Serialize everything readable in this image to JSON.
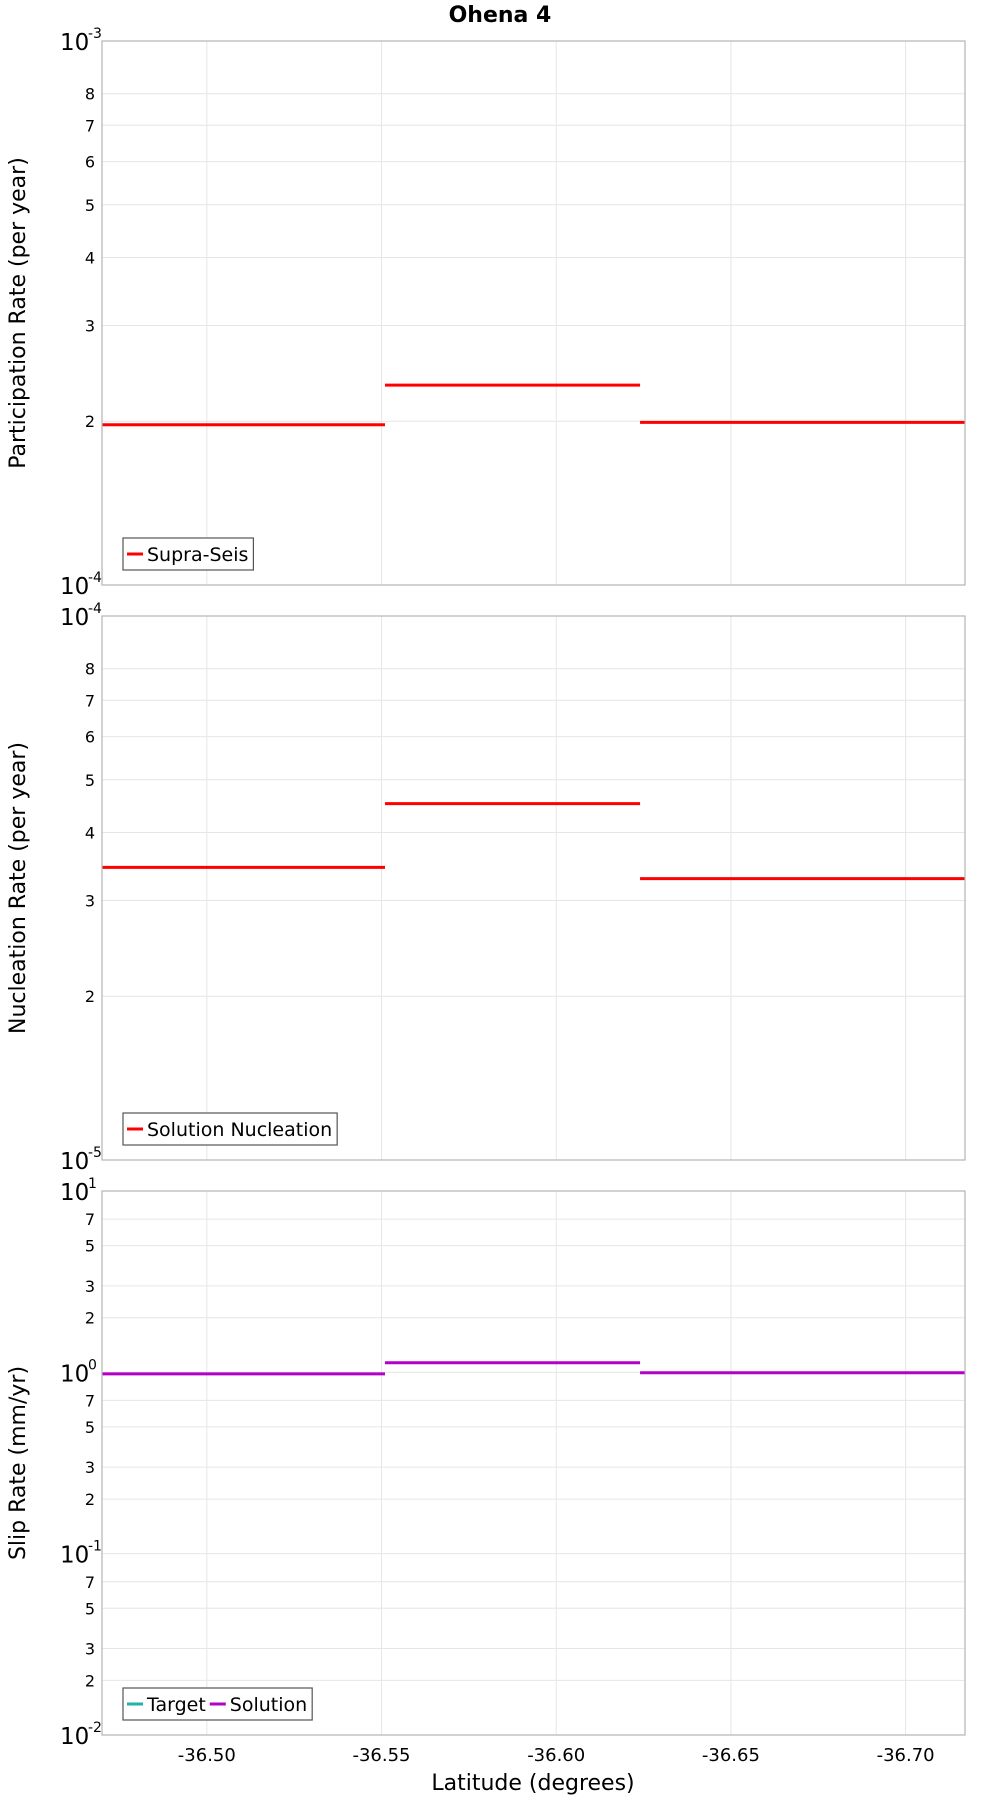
{
  "title": "Ohena 4",
  "xlabel": "Latitude (degrees)",
  "x_ticks": [
    "-36.50",
    "-36.55",
    "-36.60",
    "-36.65",
    "-36.70"
  ],
  "x_tick_values": [
    -36.5,
    -36.55,
    -36.6,
    -36.65,
    -36.7
  ],
  "xlim": [
    -36.47,
    -36.717
  ],
  "colors": {
    "red": "#ff0000",
    "teal": "#20b2aa",
    "magenta": "#b400c8",
    "grid": "#e6e6e6",
    "frame": "#b4b4b4"
  },
  "chart_data": [
    {
      "type": "line",
      "ylabel": "Participation Rate (per year)",
      "yscale": "log",
      "ylim": [
        0.0001,
        0.001
      ],
      "decade_labels": [
        {
          "value": 0.001,
          "base": "10",
          "exp": "-3"
        },
        {
          "value": 0.0001,
          "base": "10",
          "exp": "-4"
        }
      ],
      "minor_ticks": [
        {
          "value": 0.0008,
          "label": "8"
        },
        {
          "value": 0.0007,
          "label": "7"
        },
        {
          "value": 0.0006,
          "label": "6"
        },
        {
          "value": 0.0005,
          "label": "5"
        },
        {
          "value": 0.0004,
          "label": "4"
        },
        {
          "value": 0.0003,
          "label": "3"
        },
        {
          "value": 0.0002,
          "label": "2"
        }
      ],
      "legend": {
        "position": "bottom-left",
        "entries": [
          {
            "name": "Supra-Seis",
            "color": "#ff0000"
          }
        ]
      },
      "series": [
        {
          "name": "Supra-Seis",
          "color": "#ff0000",
          "segments": [
            {
              "x0": -36.47,
              "x1": -36.551,
              "y": 0.000197
            },
            {
              "x0": -36.551,
              "x1": -36.624,
              "y": 0.000233
            },
            {
              "x0": -36.624,
              "x1": -36.717,
              "y": 0.000199
            }
          ]
        }
      ]
    },
    {
      "type": "line",
      "ylabel": "Nucleation Rate (per year)",
      "yscale": "log",
      "ylim": [
        1e-05,
        0.0001
      ],
      "decade_labels": [
        {
          "value": 0.0001,
          "base": "10",
          "exp": "-4"
        },
        {
          "value": 1e-05,
          "base": "10",
          "exp": "-5"
        }
      ],
      "minor_ticks": [
        {
          "value": 8e-05,
          "label": "8"
        },
        {
          "value": 7e-05,
          "label": "7"
        },
        {
          "value": 6e-05,
          "label": "6"
        },
        {
          "value": 5e-05,
          "label": "5"
        },
        {
          "value": 4e-05,
          "label": "4"
        },
        {
          "value": 3e-05,
          "label": "3"
        },
        {
          "value": 2e-05,
          "label": "2"
        }
      ],
      "legend": {
        "position": "bottom-left",
        "entries": [
          {
            "name": "Solution Nucleation",
            "color": "#ff0000"
          }
        ]
      },
      "series": [
        {
          "name": "Solution Nucleation",
          "color": "#ff0000",
          "segments": [
            {
              "x0": -36.47,
              "x1": -36.551,
              "y": 3.45e-05
            },
            {
              "x0": -36.551,
              "x1": -36.624,
              "y": 4.52e-05
            },
            {
              "x0": -36.624,
              "x1": -36.717,
              "y": 3.29e-05
            }
          ]
        }
      ]
    },
    {
      "type": "line",
      "ylabel": "Slip Rate (mm/yr)",
      "yscale": "log",
      "ylim": [
        0.01,
        10
      ],
      "decade_labels": [
        {
          "value": 10,
          "base": "10",
          "exp": "1"
        },
        {
          "value": 1,
          "base": "10",
          "exp": "0"
        },
        {
          "value": 0.1,
          "base": "10",
          "exp": "-1"
        },
        {
          "value": 0.01,
          "base": "10",
          "exp": "-2"
        }
      ],
      "minor_ticks": [
        {
          "value": 7,
          "label": "7"
        },
        {
          "value": 5,
          "label": "5"
        },
        {
          "value": 3,
          "label": "3"
        },
        {
          "value": 2,
          "label": "2"
        },
        {
          "value": 0.7,
          "label": "7"
        },
        {
          "value": 0.5,
          "label": "5"
        },
        {
          "value": 0.3,
          "label": "3"
        },
        {
          "value": 0.2,
          "label": "2"
        },
        {
          "value": 0.07,
          "label": "7"
        },
        {
          "value": 0.05,
          "label": "5"
        },
        {
          "value": 0.03,
          "label": "3"
        },
        {
          "value": 0.02,
          "label": "2"
        }
      ],
      "legend": {
        "position": "bottom-left",
        "entries": [
          {
            "name": "Target",
            "color": "#20b2aa"
          },
          {
            "name": "Solution",
            "color": "#b400c8"
          }
        ]
      },
      "series": [
        {
          "name": "Solution",
          "color": "#b400c8",
          "segments": [
            {
              "x0": -36.47,
              "x1": -36.551,
              "y": 0.98
            },
            {
              "x0": -36.551,
              "x1": -36.624,
              "y": 1.13
            },
            {
              "x0": -36.624,
              "x1": -36.717,
              "y": 0.995
            }
          ]
        }
      ]
    }
  ]
}
